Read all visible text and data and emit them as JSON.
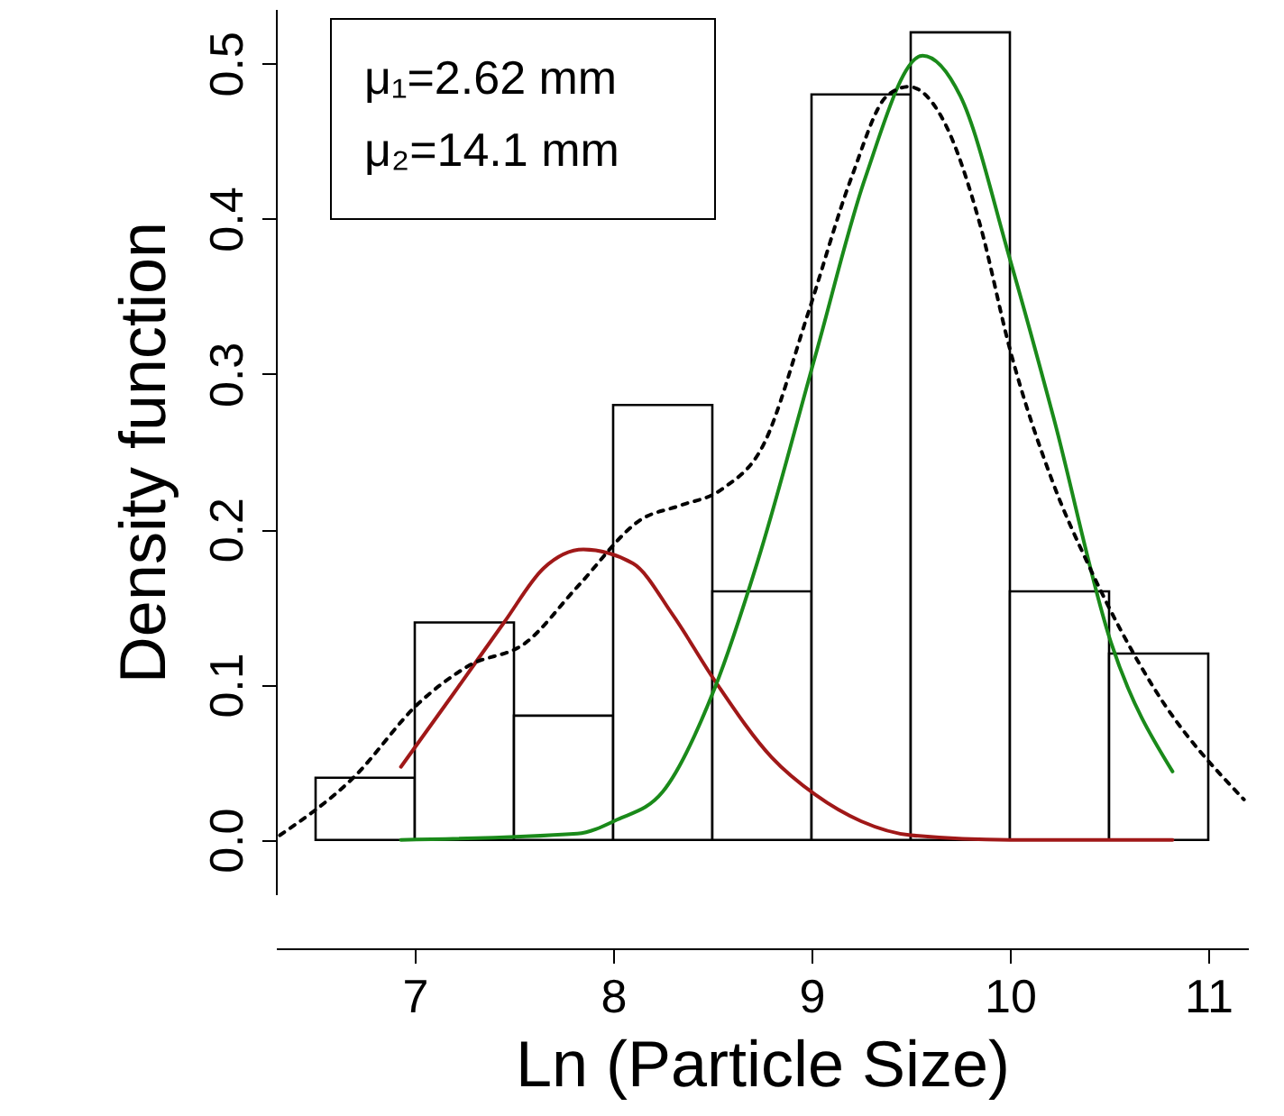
{
  "chart_data": {
    "type": "histogram",
    "xlabel": "Ln (Particle Size)",
    "ylabel": "Density function",
    "annotations": [
      "μ₁=2.62 mm",
      "μ₂=14.1 mm"
    ],
    "bins": [
      6.5,
      7,
      7.5,
      8,
      8.5,
      9,
      9.5,
      10,
      10.5,
      11
    ],
    "values": [
      0.04,
      0.14,
      0.08,
      0.28,
      0.16,
      0.48,
      0.52,
      0.16,
      0.12
    ],
    "xlim": [
      6.3,
      11.2
    ],
    "ylim": [
      -0.035,
      0.535
    ],
    "xticks": [
      7,
      8,
      9,
      10,
      11
    ],
    "yticks": [
      {
        "value": 0,
        "label": "0.0"
      },
      {
        "value": 0.1,
        "label": "0.1"
      },
      {
        "value": 0.2,
        "label": "0.2"
      },
      {
        "value": 0.3,
        "label": "0.3"
      },
      {
        "value": 0.4,
        "label": "0.4"
      },
      {
        "value": 0.5,
        "label": "0.5"
      }
    ],
    "series": [
      {
        "type": "line",
        "color": "#a01818",
        "line_style": "solid",
        "x": [
          6.93,
          7.2,
          7.45,
          7.65,
          7.85,
          8.1,
          8.3,
          8.51,
          8.8,
          9.02,
          9.25,
          9.5,
          10,
          10.82
        ],
        "values": [
          0.047,
          0.095,
          0.14,
          0.175,
          0.187,
          0.178,
          0.145,
          0.103,
          0.053,
          0.029,
          0.012,
          0.003,
          0,
          0
        ]
      },
      {
        "type": "line",
        "color": "#1a8a1a",
        "line_style": "solid",
        "x": [
          6.93,
          7.82,
          8.02,
          8.25,
          8.51,
          8.73,
          9.02,
          9.27,
          9.56,
          9.75,
          10.0,
          10.22,
          10.51,
          10.82
        ],
        "values": [
          0,
          0.004,
          0.013,
          0.031,
          0.097,
          0.18,
          0.312,
          0.426,
          0.505,
          0.479,
          0.374,
          0.272,
          0.127,
          0.044
        ]
      },
      {
        "type": "line",
        "color": "#000000",
        "line_style": "dotted",
        "x": [
          6.32,
          6.69,
          7.02,
          7.27,
          7.56,
          7.82,
          8.15,
          8.33,
          8.55,
          8.76,
          8.98,
          9.2,
          9.38,
          9.49,
          9.67,
          9.85,
          10.0,
          10.22,
          10.4,
          10.73,
          11.18
        ],
        "values": [
          0.003,
          0.04,
          0.088,
          0.112,
          0.127,
          0.163,
          0.207,
          0.215,
          0.226,
          0.255,
          0.338,
          0.426,
          0.479,
          0.485,
          0.462,
          0.396,
          0.316,
          0.229,
          0.176,
          0.097,
          0.026
        ]
      }
    ]
  }
}
